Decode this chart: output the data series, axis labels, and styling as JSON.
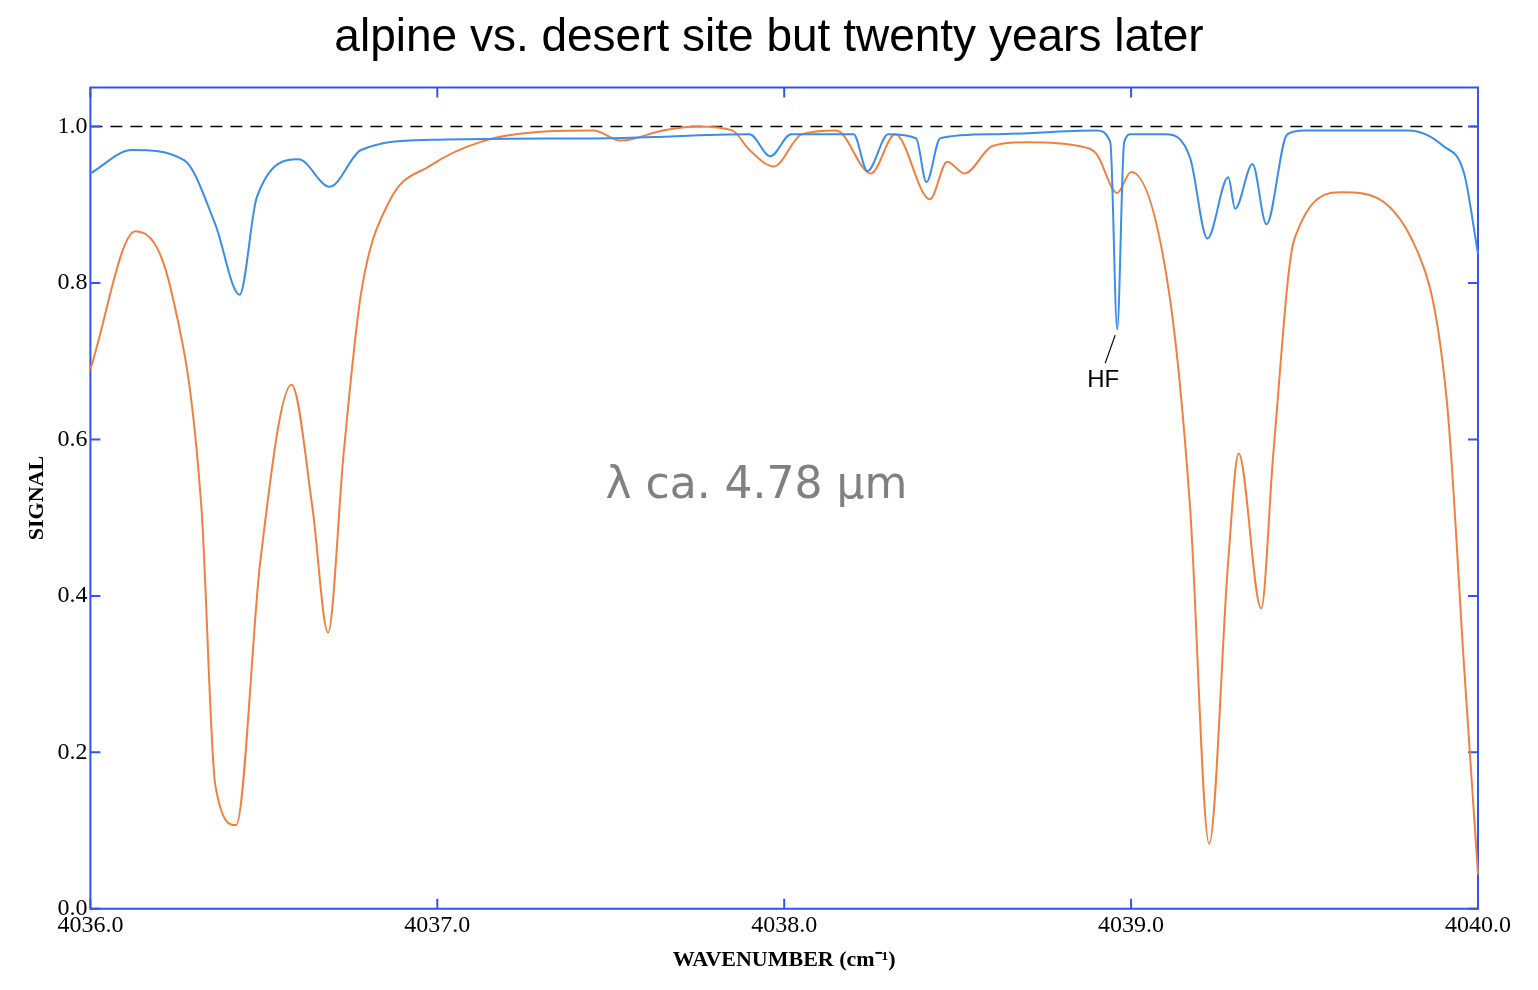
{
  "chart_data": {
    "type": "line",
    "title": "alpine vs. desert site but twenty years later",
    "xlabel": "WAVENUMBER (cm⁻¹)",
    "ylabel": "SIGNAL",
    "xlim": [
      4036,
      4040
    ],
    "xticks": [
      {
        "value": 4036,
        "label": "4036.0"
      },
      {
        "value": 4037,
        "label": "4037.0"
      },
      {
        "value": 4038,
        "label": "4038.0"
      },
      {
        "value": 4039,
        "label": "4039.0"
      },
      {
        "value": 4040,
        "label": "4040.0"
      }
    ],
    "ylim": [
      0,
      1.05
    ],
    "yticks": [
      {
        "value": 0,
        "label": "0.0"
      },
      {
        "value": 0.2,
        "label": "0.2"
      },
      {
        "value": 0.4,
        "label": "0.4"
      },
      {
        "value": 0.6,
        "label": "0.6"
      },
      {
        "value": 0.8,
        "label": "0.8"
      },
      {
        "value": 1,
        "label": "1.0"
      }
    ],
    "marker": "none",
    "line_style": "solid",
    "series": [
      {
        "color": "#3a8ee6",
        "x": [
          4036,
          4036.12,
          4036.27,
          4036.36,
          4036.43,
          4036.48,
          4036.6,
          4036.69,
          4036.78,
          4036.98,
          4037.5,
          4037.9,
          4037.96,
          4038.02,
          4038.2,
          4038.24,
          4038.3,
          4038.38,
          4038.41,
          4038.45,
          4038.6,
          4038.9,
          4038.94,
          4038.96,
          4038.98,
          4039.0,
          4039.1,
          4039.17,
          4039.22,
          4039.28,
          4039.3,
          4039.35,
          4039.39,
          4039.45,
          4039.5,
          4039.8,
          4039.9,
          4039.96,
          4040
        ],
        "values": [
          0.94,
          0.97,
          0.957,
          0.875,
          0.785,
          0.91,
          0.958,
          0.923,
          0.97,
          0.983,
          0.985,
          0.99,
          0.962,
          0.99,
          0.99,
          0.943,
          0.99,
          0.985,
          0.929,
          0.985,
          0.99,
          0.995,
          0.98,
          0.741,
          0.98,
          0.99,
          0.99,
          0.96,
          0.857,
          0.935,
          0.895,
          0.952,
          0.875,
          0.99,
          0.995,
          0.995,
          0.975,
          0.94,
          0.837
        ]
      },
      {
        "color": "#f08040",
        "x": [
          4036,
          4036.13,
          4036.235,
          4036.32,
          4036.36,
          4036.42,
          4036.49,
          4036.58,
          4036.64,
          4036.685,
          4036.73,
          4036.78,
          4036.86,
          4036.98,
          4037.13,
          4037.32,
          4037.45,
          4037.53,
          4037.65,
          4037.75,
          4037.85,
          4037.9,
          4037.97,
          4038.05,
          4038.15,
          4038.25,
          4038.32,
          4038.42,
          4038.47,
          4038.52,
          4038.6,
          4038.7,
          4038.85,
          4038.9,
          4038.96,
          4039.0,
          4039.11,
          4039.17,
          4039.225,
          4039.28,
          4039.31,
          4039.375,
          4039.41,
          4039.47,
          4039.61,
          4039.81,
          4039.91,
          4039.96,
          4040
        ],
        "values": [
          0.69,
          0.866,
          0.786,
          0.513,
          0.158,
          0.107,
          0.445,
          0.67,
          0.513,
          0.353,
          0.582,
          0.786,
          0.903,
          0.95,
          0.981,
          0.994,
          0.995,
          0.982,
          0.995,
          1,
          0.995,
          0.97,
          0.949,
          0.99,
          0.995,
          0.94,
          0.99,
          0.907,
          0.955,
          0.94,
          0.975,
          0.98,
          0.975,
          0.965,
          0.915,
          0.942,
          0.786,
          0.513,
          0.083,
          0.445,
          0.582,
          0.384,
          0.582,
          0.855,
          0.916,
          0.855,
          0.65,
          0.309,
          0.044
        ]
      }
    ],
    "ref_lines": [
      {
        "axis": "y",
        "value": 1,
        "color": "#000000",
        "line_style": "dashed"
      }
    ],
    "annotations": [
      {
        "text": "HF",
        "x": 4038.96,
        "y": 0.741
      },
      "λ ca. 4.78 μm"
    ]
  }
}
